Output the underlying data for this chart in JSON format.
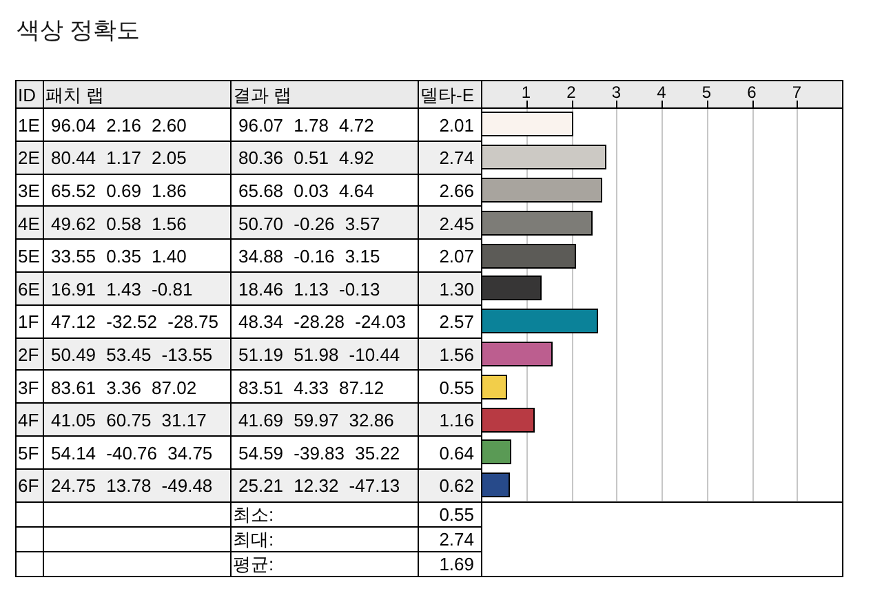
{
  "chart_data": {
    "type": "bar",
    "orientation": "horizontal",
    "title": "색상 정확도",
    "ylabel": "ID",
    "x2label": "델타-E",
    "categories": [
      "1E",
      "2E",
      "3E",
      "4E",
      "5E",
      "6E",
      "1F",
      "2F",
      "3F",
      "4F",
      "5F",
      "6F"
    ],
    "series": [
      {
        "axis": "x2",
        "values": [
          2.01,
          2.74,
          2.66,
          2.45,
          2.07,
          1.3,
          2.57,
          1.56,
          0.55,
          1.16,
          0.64,
          0.62
        ],
        "value_labels": [
          "2.01",
          "2.74",
          "2.66",
          "2.45",
          "2.07",
          "1.30",
          "2.57",
          "1.56",
          "0.55",
          "1.16",
          "0.64",
          "0.62"
        ],
        "colors": [
          "#faf3ee",
          "#ccc9c4",
          "#a8a49e",
          "#7d7c77",
          "#5c5b57",
          "#373636",
          "#0b8299",
          "#bc5e8f",
          "#f2ce4a",
          "#b83a43",
          "#5a9a55",
          "#274a8a"
        ]
      }
    ],
    "x2lim": [
      0,
      8
    ],
    "x2ticks": [
      1,
      2,
      3,
      4,
      5,
      6,
      7
    ],
    "grid": "x",
    "annotations": [
      "패치 랩",
      "결과 랩",
      "96.04 2.16 2.60",
      "96.07 1.78 4.72",
      "80.44 1.17 2.05",
      "80.36 0.51 4.92",
      "65.52 0.69 1.86",
      "65.68 0.03 4.64",
      "49.62 0.58 1.56",
      "50.70 -0.26 3.57",
      "33.55 0.35 1.40",
      "34.88 -0.16 3.15",
      "16.91 1.43 -0.81",
      "18.46 1.13 -0.13",
      "47.12 -32.52 -28.75",
      "48.34 -28.28 -24.03",
      "50.49 53.45 -13.55",
      "51.19 51.98 -10.44",
      "83.61 3.36 87.02",
      "83.51 4.33 87.12",
      "41.05 60.75 31.17",
      "41.69 59.97 32.86",
      "54.14 -40.76 34.75",
      "54.59 -39.83 35.22",
      "24.75 13.78 -49.48",
      "25.21 12.32 -47.13",
      "최소:",
      "0.55",
      "최대:",
      "2.74",
      "평균:",
      "1.69"
    ]
  }
}
